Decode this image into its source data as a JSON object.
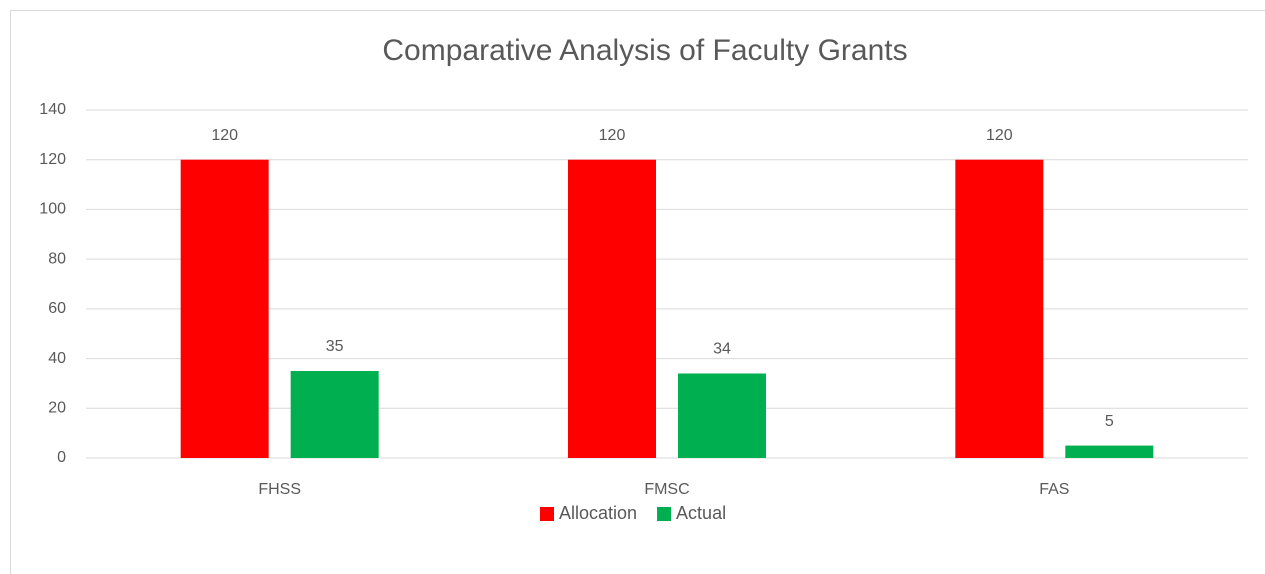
{
  "chart_data": {
    "type": "bar",
    "title": "Comparative Analysis of Faculty Grants",
    "categories": [
      "FHSS",
      "FMSC",
      "FAS"
    ],
    "series": [
      {
        "name": "Allocation",
        "color": "#ff0000",
        "values": [
          120,
          120,
          120
        ]
      },
      {
        "name": "Actual",
        "color": "#00b050",
        "values": [
          35,
          34,
          5
        ]
      }
    ],
    "ylim": [
      0,
      140
    ],
    "yticks": [
      0,
      20,
      40,
      60,
      80,
      100,
      120,
      140
    ],
    "grid": true,
    "legend": "bottom",
    "data_labels": true
  }
}
